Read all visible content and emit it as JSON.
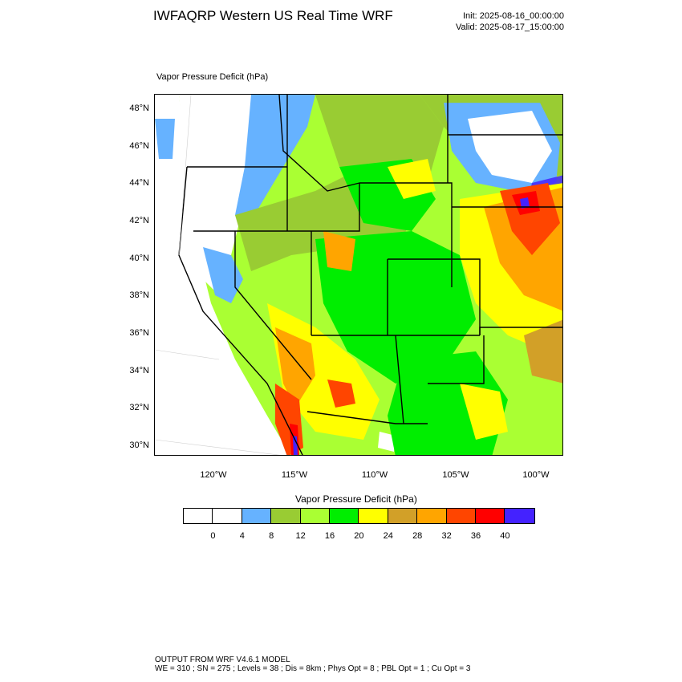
{
  "header": {
    "title": "IWFAQRP Western US Real Time WRF",
    "init": "Init: 2025-08-16_00:00:00",
    "valid": "Valid: 2025-08-17_15:00:00"
  },
  "map": {
    "label": "Vapor Pressure Deficit   (hPa)",
    "lat_labels": [
      "48°N",
      "46°N",
      "44°N",
      "42°N",
      "40°N",
      "38°N",
      "36°N",
      "34°N",
      "32°N",
      "30°N"
    ],
    "lon_labels": [
      "120°W",
      "115°W",
      "110°W",
      "105°W",
      "100°W"
    ]
  },
  "colorbar": {
    "title": "Vapor Pressure Deficit  (hPa)",
    "ticks": [
      "0",
      "4",
      "8",
      "12",
      "16",
      "20",
      "24",
      "28",
      "32",
      "36",
      "40"
    ],
    "colors": [
      "#ffffff",
      "#ffffff",
      "#66b2ff",
      "#99cc33",
      "#aaff33",
      "#00ee00",
      "#ffff00",
      "#d2a028",
      "#ffa500",
      "#ff4500",
      "#ff0000",
      "#4422ff"
    ]
  },
  "footer": {
    "line1": "OUTPUT FROM WRF V4.6.1 MODEL",
    "line2": "WE = 310 ; SN = 275 ; Levels = 38 ; Dis = 8km ; Phys Opt = 8 ; PBL Opt = 1 ; Cu Opt = 3"
  }
}
